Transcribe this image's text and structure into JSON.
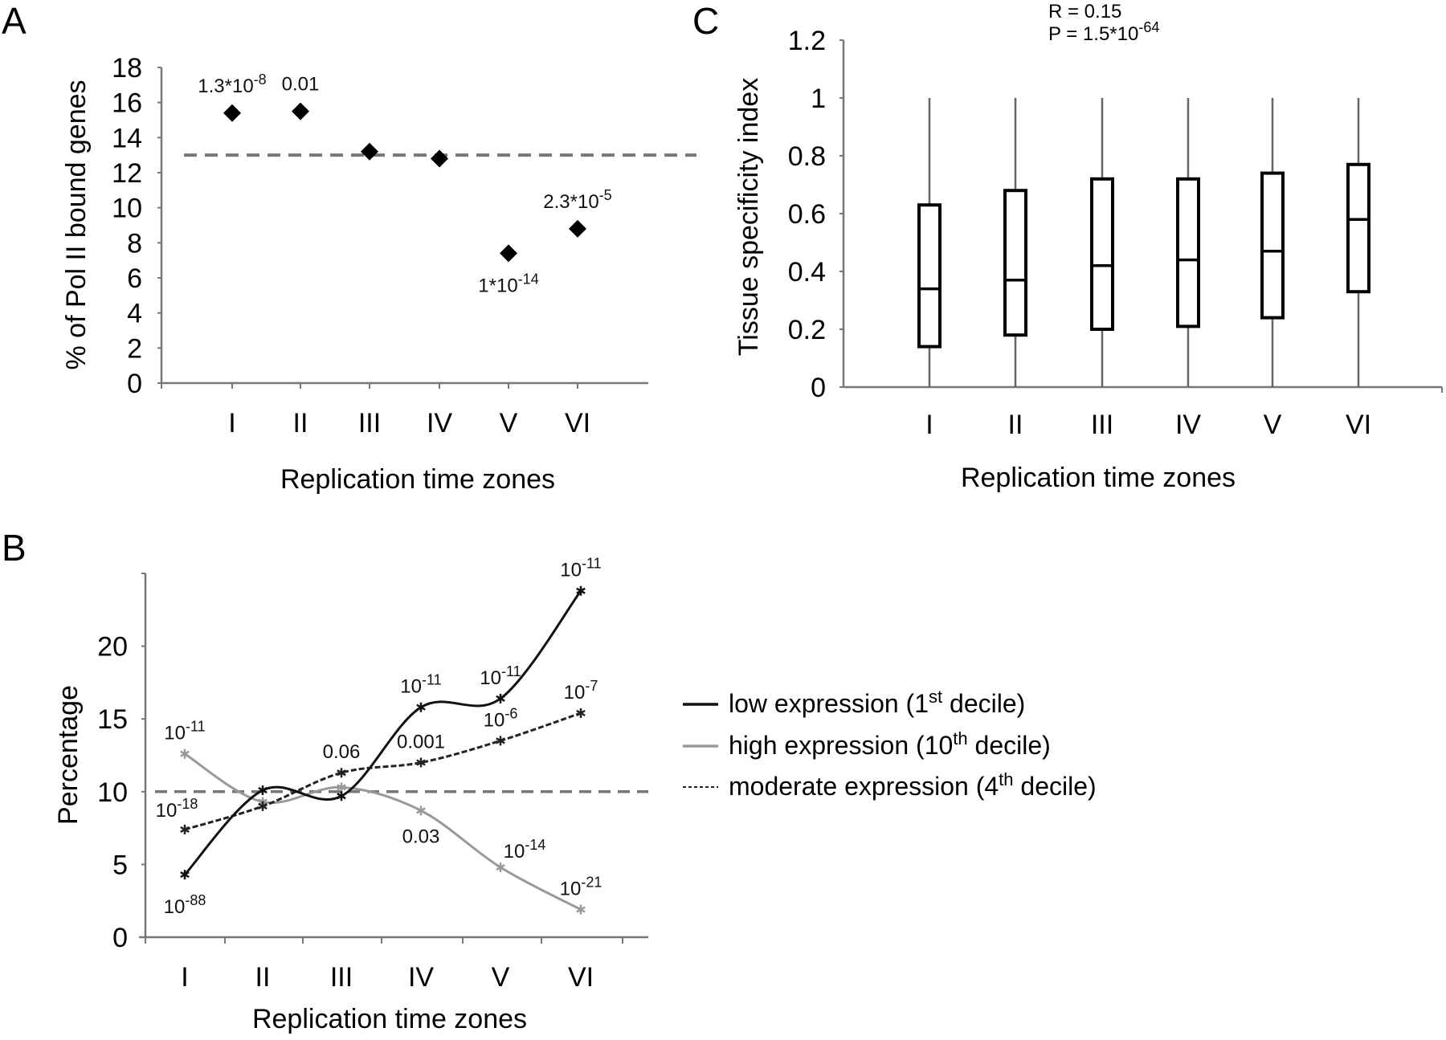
{
  "chart_data": [
    {
      "panel": "A",
      "type": "scatter",
      "categories": [
        "I",
        "II",
        "III",
        "IV",
        "V",
        "VI"
      ],
      "values": [
        15.4,
        15.5,
        13.2,
        12.8,
        7.4,
        8.8
      ],
      "reference_line": 13,
      "annotations": [
        {
          "category": "I",
          "text": "1.3*10",
          "sup": "-8",
          "position": "above"
        },
        {
          "category": "II",
          "text": "0.01",
          "sup": "",
          "position": "above"
        },
        {
          "category": "V",
          "text": "1*10",
          "sup": "-14",
          "position": "below"
        },
        {
          "category": "VI",
          "text": "2.3*10",
          "sup": "-5",
          "position": "above"
        }
      ],
      "xlabel": "Replication time zones",
      "ylabel": "% of Pol II bound genes",
      "ylim": [
        0,
        18
      ],
      "yticks": [
        "0",
        "2",
        "4",
        "6",
        "8",
        "10",
        "12",
        "14",
        "16",
        "18"
      ],
      "marker": "diamond",
      "color": "#000000",
      "reference_color": "#777777"
    },
    {
      "panel": "B",
      "type": "line",
      "categories": [
        "I",
        "II",
        "III",
        "IV",
        "V",
        "VI"
      ],
      "series": [
        {
          "name": "low expression (1",
          "name_sup": "st",
          "name_end": " decile)",
          "values": [
            4.3,
            10.1,
            9.7,
            15.8,
            16.4,
            23.8
          ],
          "color": "#111111",
          "style": "solid",
          "annotations": [
            {
              "category": "I",
              "text": "10",
              "sup": "-88",
              "position": "below"
            },
            {
              "category": "IV",
              "text": "10",
              "sup": "-11",
              "position": "above"
            },
            {
              "category": "V",
              "text": "10",
              "sup": "-11",
              "position": "above"
            },
            {
              "category": "VI",
              "text": "10",
              "sup": "-11",
              "position": "above"
            }
          ]
        },
        {
          "name": "high expression (10",
          "name_sup": "th",
          "name_end": " decile)",
          "values": [
            12.6,
            9.3,
            10.3,
            8.7,
            4.8,
            1.9
          ],
          "color": "#999999",
          "style": "solid",
          "annotations": [
            {
              "category": "I",
              "text": "10",
              "sup": "-11",
              "position": "above"
            },
            {
              "category": "IV",
              "text": "0.03",
              "sup": "",
              "position": "below"
            },
            {
              "category": "V",
              "text": "10",
              "sup": "-14",
              "position": "above-right"
            },
            {
              "category": "VI",
              "text": "10",
              "sup": "-21",
              "position": "above"
            }
          ]
        },
        {
          "name": "moderate expression (4",
          "name_sup": "th",
          "name_end": " decile)",
          "values": [
            7.4,
            9.0,
            11.3,
            12.0,
            13.5,
            15.4
          ],
          "color": "#222222",
          "style": "dashed",
          "annotations": [
            {
              "category": "I",
              "text": "10",
              "sup": "-18",
              "position": "above"
            },
            {
              "category": "III",
              "text": "0.06",
              "sup": "",
              "position": "above"
            },
            {
              "category": "IV",
              "text": "0.001",
              "sup": "",
              "position": "above"
            },
            {
              "category": "V",
              "text": "10",
              "sup": "-6",
              "position": "above"
            },
            {
              "category": "VI",
              "text": "10",
              "sup": "-7",
              "position": "above"
            }
          ]
        }
      ],
      "reference_line": 10,
      "xlabel": "Replication time zones",
      "ylabel": "Percentage",
      "ylim": [
        0,
        25
      ],
      "yticks": [
        "0",
        "5",
        "10",
        "15",
        "20"
      ],
      "legend": "right"
    },
    {
      "panel": "C",
      "type": "box",
      "categories": [
        "I",
        "II",
        "III",
        "IV",
        "V",
        "VI"
      ],
      "boxes": [
        {
          "min": 0,
          "q1": 0.14,
          "median": 0.34,
          "q3": 0.63,
          "max": 1
        },
        {
          "min": 0,
          "q1": 0.18,
          "median": 0.37,
          "q3": 0.68,
          "max": 1
        },
        {
          "min": 0,
          "q1": 0.2,
          "median": 0.42,
          "q3": 0.72,
          "max": 1
        },
        {
          "min": 0,
          "q1": 0.21,
          "median": 0.44,
          "q3": 0.72,
          "max": 1
        },
        {
          "min": 0,
          "q1": 0.24,
          "median": 0.47,
          "q3": 0.74,
          "max": 1
        },
        {
          "min": 0,
          "q1": 0.33,
          "median": 0.58,
          "q3": 0.77,
          "max": 1
        }
      ],
      "stats": {
        "r": "R = 0.15",
        "p": "P = 1.5*10",
        "p_sup": "-64"
      },
      "xlabel": "Replication time zones",
      "ylabel": "Tissue specificity index",
      "ylim": [
        0,
        1.2
      ],
      "yticks": [
        "0",
        "0.2",
        "0.4",
        "0.6",
        "0.8",
        "1",
        "1.2"
      ]
    }
  ],
  "panels": {
    "a": "A",
    "b": "B",
    "c": "C"
  }
}
